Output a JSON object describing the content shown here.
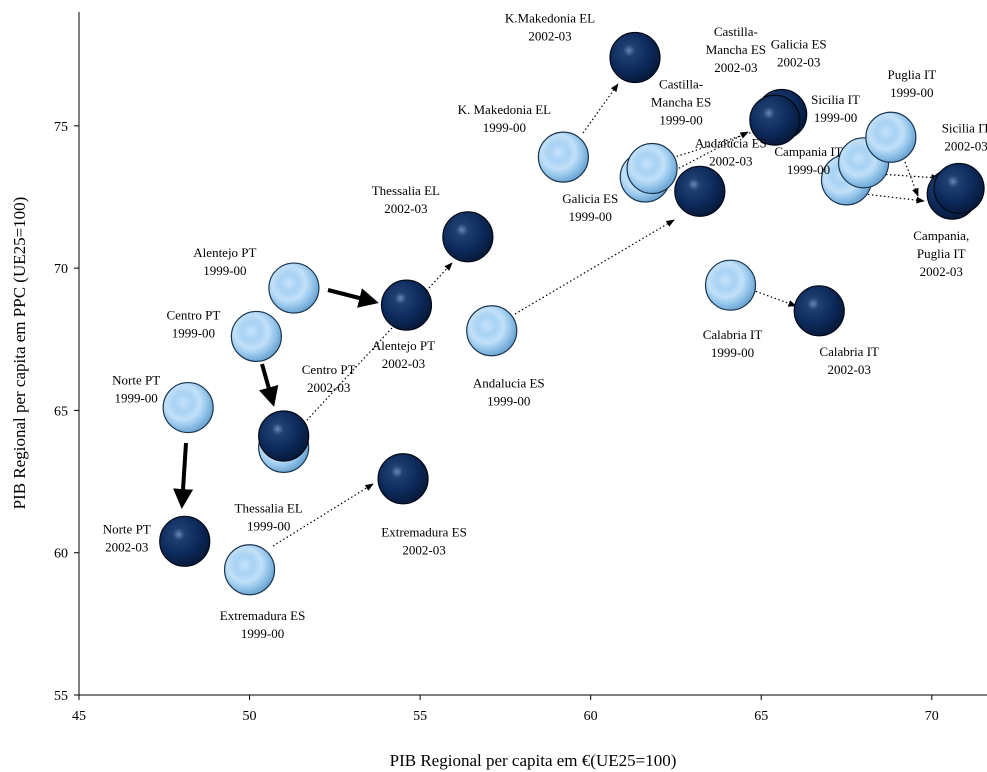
{
  "chart_data": {
    "type": "scatter",
    "xlabel": "PIB Regional per capita em €(UE25=100)",
    "ylabel": "PIB Regional per capita em PPC (UE25=100)",
    "xlim": [
      45,
      72
    ],
    "ylim": [
      55,
      79
    ],
    "xticks": [
      "45",
      "50",
      "55",
      "60",
      "65",
      "70"
    ],
    "yticks": [
      "55",
      "60",
      "65",
      "70",
      "75"
    ],
    "grid": false,
    "legend": "none",
    "colors": {
      "period_1999_00": "#8cc3ec",
      "period_2002_03": "#0e2d5f"
    },
    "series": [
      {
        "period": "1999-00",
        "points": [
          {
            "label": [
              "Norte PT",
              "1999-00"
            ],
            "x": 48.2,
            "y": 65.1
          },
          {
            "label": [
              "Centro PT",
              "1999-00"
            ],
            "x": 50.2,
            "y": 67.6
          },
          {
            "label": [
              "Alentejo PT",
              "1999-00"
            ],
            "x": 51.3,
            "y": 69.3
          },
          {
            "label": [
              "Thessalia EL",
              "1999-00"
            ],
            "x": 51.0,
            "y": 63.7
          },
          {
            "label": [
              "Extremadura ES",
              "1999-00"
            ],
            "x": 50.0,
            "y": 59.4
          },
          {
            "label": [
              "Andalucia ES",
              "1999-00"
            ],
            "x": 57.1,
            "y": 67.8
          },
          {
            "label": [
              "K. Makedonia EL",
              "1999-00"
            ],
            "x": 59.2,
            "y": 73.9
          },
          {
            "label": [
              "Galicia ES",
              "1999-00"
            ],
            "x": 61.6,
            "y": 73.2
          },
          {
            "label": [
              "Castilla-",
              "Mancha ES",
              "1999-00"
            ],
            "x": 61.8,
            "y": 73.5
          },
          {
            "label": [
              "Calabria IT",
              "1999-00"
            ],
            "x": 64.1,
            "y": 69.4
          },
          {
            "label": [
              "Campania IT",
              "1999-00"
            ],
            "x": 67.5,
            "y": 73.1
          },
          {
            "label": [
              "Sicilia IT",
              "1999-00"
            ],
            "x": 68.0,
            "y": 73.7
          },
          {
            "label": [
              "Puglia IT",
              "1999-00"
            ],
            "x": 68.8,
            "y": 74.6
          }
        ]
      },
      {
        "period": "2002-03",
        "points": [
          {
            "label": [
              "Norte PT",
              "2002-03"
            ],
            "x": 48.1,
            "y": 60.4
          },
          {
            "label": [
              "Centro PT",
              "2002-03"
            ],
            "x": 51.0,
            "y": 64.1
          },
          {
            "label": [
              "Alentejo PT",
              "2002-03"
            ],
            "x": 54.6,
            "y": 68.7
          },
          {
            "label": [
              "Thessalia EL",
              "2002-03"
            ],
            "x": 56.4,
            "y": 71.1
          },
          {
            "label": [
              "Extremadura ES",
              "2002-03"
            ],
            "x": 54.5,
            "y": 62.6
          },
          {
            "label": [
              "Andalucia ES",
              "2002-03"
            ],
            "x": 63.2,
            "y": 72.7
          },
          {
            "label": [
              "K.Makedonia EL",
              "2002-03"
            ],
            "x": 61.3,
            "y": 77.4
          },
          {
            "label": [
              "Galicia ES",
              "2002-03"
            ],
            "x": 65.6,
            "y": 75.4
          },
          {
            "label": [
              "Castilla-",
              "Mancha ES",
              "2002-03"
            ],
            "x": 65.4,
            "y": 75.2
          },
          {
            "label": [
              "Calabria IT",
              "2002-03"
            ],
            "x": 66.7,
            "y": 68.5
          },
          {
            "label": [
              "Campania,",
              "Puglia IT",
              "2002-03"
            ],
            "x": 70.6,
            "y": 72.6
          },
          {
            "label": [
              "Sicilia IT",
              "2002-03"
            ],
            "x": 70.8,
            "y": 72.8
          }
        ]
      }
    ]
  }
}
